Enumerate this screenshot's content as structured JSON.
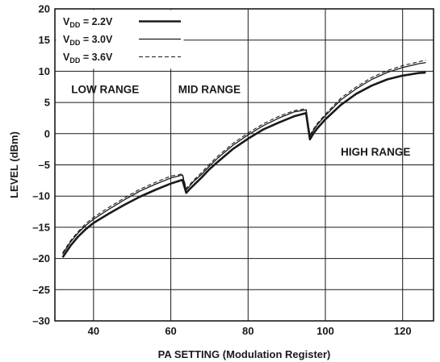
{
  "chart_data": {
    "type": "line",
    "xlabel": "PA SETTING (Modulation Register)",
    "ylabel": "LEVEL (dBm)",
    "xlim": [
      30,
      128
    ],
    "ylim": [
      -30,
      20
    ],
    "x_ticks": [
      40,
      60,
      80,
      100,
      120
    ],
    "y_ticks": [
      20,
      15,
      10,
      5,
      0,
      -5,
      -10,
      -15,
      -20,
      -25,
      -30
    ],
    "x_tick_labels": [
      "40",
      "60",
      "80",
      "100",
      "120"
    ],
    "y_tick_labels": [
      "20",
      "15",
      "10",
      "5",
      "0",
      "–5",
      "–10",
      "–15",
      "–20",
      "–25",
      "–30"
    ],
    "grid": true,
    "legend_position": "top-left",
    "annotations": [
      {
        "text": "LOW RANGE",
        "x": 43,
        "y": 6.5
      },
      {
        "text": "MID RANGE",
        "x": 70,
        "y": 6.5
      },
      {
        "text": "HIGH RANGE",
        "x": 113,
        "y": -3.5
      }
    ],
    "series": [
      {
        "name": "VDD = 2.2V",
        "name_parts": {
          "prefix": "V",
          "sub": "DD",
          "suffix": " = 2.2V"
        },
        "line_style": "thick",
        "x": [
          32,
          34,
          36,
          38,
          40,
          44,
          48,
          52,
          56,
          60,
          62,
          63,
          64,
          65,
          66,
          68,
          70,
          72,
          76,
          80,
          84,
          88,
          92,
          95,
          96,
          97,
          98,
          100,
          104,
          108,
          112,
          116,
          120,
          124,
          126
        ],
        "y": [
          -19.8,
          -18.0,
          -16.5,
          -15.3,
          -14.3,
          -12.8,
          -11.4,
          -10.1,
          -9.0,
          -8.0,
          -7.6,
          -7.4,
          -9.5,
          -8.8,
          -8.2,
          -7.0,
          -5.7,
          -4.6,
          -2.5,
          -0.8,
          0.7,
          1.8,
          2.8,
          3.3,
          -0.9,
          0.1,
          0.9,
          2.3,
          4.6,
          6.4,
          7.7,
          8.7,
          9.3,
          9.7,
          9.8
        ]
      },
      {
        "name": "VDD = 3.0V",
        "name_parts": {
          "prefix": "V",
          "sub": "DD",
          "suffix": " = 3.0V"
        },
        "line_style": "solid",
        "x": [
          32,
          34,
          36,
          38,
          40,
          44,
          48,
          52,
          56,
          60,
          62,
          63,
          64,
          65,
          66,
          68,
          70,
          72,
          76,
          80,
          84,
          88,
          92,
          95,
          96,
          97,
          98,
          100,
          104,
          108,
          112,
          116,
          120,
          124,
          126
        ],
        "y": [
          -19.3,
          -17.4,
          -15.9,
          -14.7,
          -13.7,
          -12.1,
          -10.6,
          -9.2,
          -8.1,
          -7.1,
          -6.8,
          -6.6,
          -9.0,
          -8.3,
          -7.6,
          -6.5,
          -5.2,
          -4.0,
          -1.9,
          -0.2,
          1.3,
          2.5,
          3.5,
          3.8,
          -0.4,
          0.6,
          1.5,
          2.9,
          5.4,
          7.2,
          8.7,
          9.8,
          10.6,
          11.2,
          11.4
        ]
      },
      {
        "name": "VDD = 3.6V",
        "name_parts": {
          "prefix": "V",
          "sub": "DD",
          "suffix": " = 3.6V"
        },
        "line_style": "dashed",
        "x": [
          32,
          34,
          36,
          38,
          40,
          44,
          48,
          52,
          56,
          60,
          62,
          63,
          64,
          65,
          66,
          68,
          70,
          72,
          76,
          80,
          84,
          88,
          92,
          95,
          96,
          97,
          98,
          100,
          104,
          108,
          112,
          116,
          120,
          124,
          126
        ],
        "y": [
          -19.1,
          -17.2,
          -15.7,
          -14.4,
          -13.4,
          -11.8,
          -10.3,
          -8.9,
          -7.8,
          -6.8,
          -6.6,
          -6.4,
          -8.8,
          -8.1,
          -7.4,
          -6.2,
          -4.9,
          -3.7,
          -1.6,
          0.1,
          1.6,
          2.8,
          3.7,
          4.0,
          -0.2,
          0.8,
          1.7,
          3.1,
          5.7,
          7.5,
          9.0,
          10.1,
          10.9,
          11.5,
          11.8
        ]
      }
    ]
  }
}
